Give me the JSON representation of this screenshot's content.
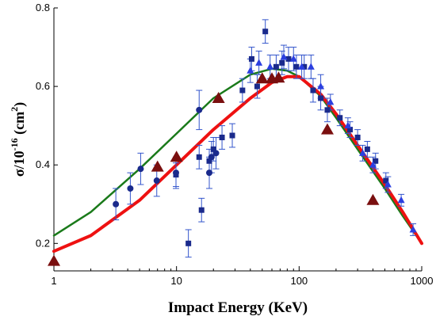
{
  "chart_data": {
    "type": "scatter",
    "xlabel": "Impact Energy (KeV)",
    "ylabel": {
      "base": "σ/10",
      "exp": "-16",
      "unit_open": " (cm",
      "unit_exp": "2",
      "unit_close": ")"
    },
    "xscale": "log",
    "xlim": [
      1,
      1000
    ],
    "ylim": [
      0.13,
      0.8
    ],
    "xticks": [
      {
        "value": 1,
        "label": "1"
      },
      {
        "value": 10,
        "label": "10"
      },
      {
        "value": 100,
        "label": "100"
      },
      {
        "value": 1000,
        "label": "1000"
      }
    ],
    "yticks": [
      {
        "value": 0.2,
        "label": "0.2"
      },
      {
        "value": 0.4,
        "label": "0.4"
      },
      {
        "value": 0.6,
        "label": "0.6"
      },
      {
        "value": 0.8,
        "label": "0.8"
      }
    ],
    "grid": false,
    "colors": {
      "green": "#1a7a1a",
      "red": "#ee1111",
      "navy": "#1a2a8c",
      "blue": "#2b3fe0",
      "triangle": "#7a0f0f",
      "error": "#3355cc"
    },
    "series": [
      {
        "marker": "line-green",
        "x": [
          1,
          2,
          5,
          10,
          20,
          40,
          60,
          80,
          100,
          150,
          200,
          300,
          500,
          700,
          1000
        ],
        "y": [
          0.22,
          0.28,
          0.39,
          0.48,
          0.57,
          0.63,
          0.645,
          0.64,
          0.625,
          0.575,
          0.52,
          0.44,
          0.34,
          0.27,
          0.2
        ]
      },
      {
        "marker": "line-red",
        "x": [
          1,
          2,
          5,
          10,
          20,
          40,
          60,
          80,
          100,
          150,
          200,
          300,
          500,
          700,
          1000
        ],
        "y": [
          0.18,
          0.22,
          0.31,
          0.4,
          0.49,
          0.57,
          0.61,
          0.625,
          0.625,
          0.58,
          0.53,
          0.45,
          0.35,
          0.28,
          0.2
        ]
      },
      {
        "marker": "circle",
        "x": [
          3.2,
          4.2,
          5.1,
          6.9,
          9.9,
          15.3,
          18.5,
          19.3,
          21.0
        ],
        "y": [
          0.3,
          0.34,
          0.39,
          0.36,
          0.38,
          0.54,
          0.38,
          0.42,
          0.43
        ],
        "err": [
          0.04,
          0.04,
          0.04,
          0.04,
          0.04,
          0.05,
          0.04,
          0.04,
          0.04
        ]
      },
      {
        "marker": "square",
        "x": [
          9.9,
          12.5,
          15.3,
          16.0,
          18.5,
          20.0,
          23.5,
          28.5,
          34.5,
          41.0,
          45.5,
          53.0,
          65.0,
          72.5,
          82.0,
          95.0,
          110.0,
          130.0,
          150.0,
          170.0,
          215.0,
          260.0,
          300.0,
          360.0,
          420.0,
          510.0
        ],
        "y": [
          0.375,
          0.2,
          0.42,
          0.285,
          0.41,
          0.44,
          0.47,
          0.475,
          0.59,
          0.67,
          0.6,
          0.74,
          0.65,
          0.66,
          0.67,
          0.65,
          0.65,
          0.59,
          0.57,
          0.54,
          0.52,
          0.49,
          0.47,
          0.44,
          0.41,
          0.36
        ],
        "err": [
          0.03,
          0.035,
          0.03,
          0.03,
          0.03,
          0.03,
          0.03,
          0.03,
          0.03,
          0.03,
          0.03,
          0.03,
          0.03,
          0.03,
          0.03,
          0.03,
          0.03,
          0.03,
          0.03,
          0.03,
          0.02,
          0.02,
          0.02,
          0.02,
          0.02,
          0.02
        ]
      },
      {
        "marker": "triangle-blue",
        "x": [
          40.0,
          47.0,
          58.0,
          75.0,
          90.0,
          105.0,
          125.0,
          150.0,
          180.0,
          250.0,
          330.0,
          400.0,
          530.0,
          680.0,
          850.0
        ],
        "y": [
          0.64,
          0.66,
          0.65,
          0.675,
          0.67,
          0.65,
          0.65,
          0.6,
          0.56,
          0.5,
          0.43,
          0.4,
          0.35,
          0.31,
          0.235
        ],
        "err": [
          0.03,
          0.03,
          0.03,
          0.03,
          0.03,
          0.03,
          0.03,
          0.03,
          0.02,
          0.02,
          0.02,
          0.02,
          0.02,
          0.015,
          0.015
        ]
      },
      {
        "marker": "triangle-dark",
        "x": [
          1.0,
          7.0,
          10.0,
          22.0,
          50.0,
          60.0,
          68.0,
          170.0,
          400.0
        ],
        "y": [
          0.155,
          0.395,
          0.42,
          0.57,
          0.62,
          0.62,
          0.622,
          0.49,
          0.31
        ]
      }
    ]
  }
}
